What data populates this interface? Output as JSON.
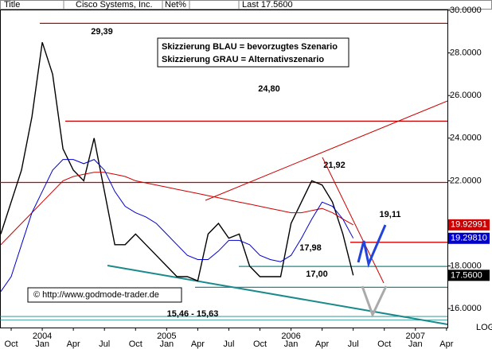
{
  "header": [
    "Title",
    "Cisco Systems, Inc.",
    "Net%",
    "Last 17.5600"
  ],
  "chart_data": {
    "type": "line",
    "categories": [
      null,
      "Oct",
      null,
      null,
      "Jan",
      null,
      null,
      "Apr",
      null,
      null,
      "Jul",
      null,
      null,
      "Oct",
      null,
      null,
      "Jan",
      null,
      null,
      "Apr",
      null,
      null,
      "Jul",
      null,
      null,
      "Oct",
      null,
      null,
      "Jan",
      null,
      null,
      "Apr",
      null,
      null,
      "Jul",
      null,
      null,
      "Oct",
      null,
      null,
      "Jan",
      null,
      null,
      "Apr"
    ],
    "year_labels": [
      "2004",
      "2005",
      "2006",
      "2007"
    ],
    "series": [
      {
        "color": "#000000",
        "values": [
          19.5,
          21,
          22.5,
          25,
          28.5,
          27,
          23.5,
          22.5,
          22,
          24,
          21.5,
          19,
          19,
          19.5,
          19,
          18.5,
          18,
          17.5,
          17.5,
          17.3,
          19.5,
          20,
          19.3,
          19.5,
          18,
          17.5,
          17.5,
          17.5,
          20,
          21,
          22,
          21.8,
          21,
          19.5,
          17.56,
          null,
          null,
          null,
          null,
          null,
          null,
          null,
          null,
          null
        ]
      },
      {
        "color": "#cc0000",
        "values": [
          19,
          19.5,
          20,
          20.5,
          21,
          21.5,
          22,
          22.2,
          22.3,
          22.4,
          22.4,
          22.3,
          22.2,
          22,
          21.9,
          21.8,
          21.7,
          21.6,
          21.5,
          21.4,
          21.3,
          21.2,
          21.1,
          21,
          20.9,
          20.8,
          20.7,
          20.6,
          20.5,
          20.5,
          20.6,
          20.7,
          20.5,
          20.2,
          19.93,
          null,
          null,
          null,
          null,
          null,
          null,
          null,
          null,
          null
        ]
      },
      {
        "color": "#0000cc",
        "values": [
          16.8,
          17.5,
          19,
          20.5,
          21.5,
          22.5,
          23,
          23,
          22.8,
          23,
          22.5,
          21.5,
          20.8,
          20.5,
          20.3,
          20,
          19.5,
          19,
          18.5,
          18.3,
          18.3,
          18.7,
          19.2,
          19.2,
          19,
          18.5,
          18.3,
          18.2,
          18.5,
          19.3,
          20.2,
          21,
          20.8,
          20.2,
          19.3,
          null,
          null,
          null,
          null,
          null,
          null,
          null,
          null,
          null
        ]
      }
    ],
    "ylim": [
      15.11,
      30
    ],
    "yticks": [
      {
        "value": 16,
        "label": "16.0000"
      },
      {
        "value": 18,
        "label": "18.0000"
      },
      {
        "value": 20,
        "label": "20.0000"
      },
      {
        "value": 22,
        "label": "22.0000"
      },
      {
        "value": 24,
        "label": "24.0000"
      },
      {
        "value": 26,
        "label": "26.0000"
      },
      {
        "value": 28,
        "label": "28.0000"
      },
      {
        "value": 30,
        "label": "30.0000"
      }
    ],
    "scale_label": "LOG",
    "levels": [
      {
        "value": 29.39,
        "label": "29,39",
        "color": "#cc0000"
      },
      {
        "value": 24.8,
        "label": "24,80",
        "color": "#cc0000"
      },
      {
        "value": 21.92,
        "label": "21,92",
        "color": "#cc0000"
      },
      {
        "value": 19.11,
        "label": "19,11",
        "color": "#cc0000"
      },
      {
        "value": 17.98,
        "label": "17,98",
        "color": "#1a8a8a"
      },
      {
        "value": 17,
        "label": "17,00",
        "color": "#1a8a8a"
      }
    ],
    "low_band": {
      "values": [
        15.46,
        15.63
      ],
      "label": "15,46 - 15,63",
      "color": "#1a8a8a"
    },
    "markers": [
      {
        "value": 19.92991,
        "color": "#cc0000"
      },
      {
        "value": 19.2981,
        "label": "19.29810",
        "color": "#0000cc"
      },
      {
        "value": 17.56,
        "label": "17.5600",
        "color": "#000000"
      }
    ],
    "legend_lines": [
      "Skizzierung BLAU = bevorzugtes Szenario",
      "Skizzierung GRAU = Alternativszenario"
    ],
    "copyright": "© http://www.godmode-trader.de"
  }
}
